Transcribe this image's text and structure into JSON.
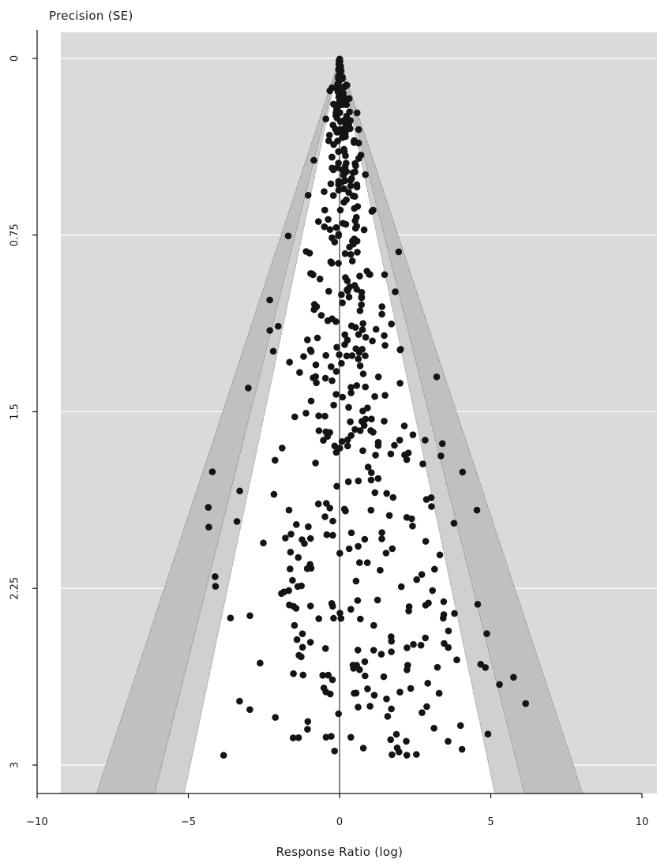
{
  "chart_data": {
    "type": "scatter",
    "title": "",
    "xlabel": "Response Ratio (log)",
    "ylabel": "Precision (SE)",
    "xlim": [
      -10,
      10
    ],
    "ylim": [
      3.12,
      -0.12
    ],
    "x_ticks": [
      {
        "value": -10,
        "label": "−10"
      },
      {
        "value": -5,
        "label": "−5"
      },
      {
        "value": 0,
        "label": "0"
      },
      {
        "value": 5,
        "label": "5"
      },
      {
        "value": 10,
        "label": "10"
      }
    ],
    "y_ticks": [
      {
        "value": 0,
        "label": "0"
      },
      {
        "value": 0.75,
        "label": "0.75"
      },
      {
        "value": 1.5,
        "label": "1.5"
      },
      {
        "value": 2.25,
        "label": "2.25"
      },
      {
        "value": 3,
        "label": "3"
      }
    ],
    "funnel": {
      "center": 0,
      "max_se": 3.12,
      "contour_z": [
        1.645,
        1.96,
        2.576
      ],
      "fill_colors": [
        "#ffffff",
        "#d0d0d0",
        "#bfc1c1"
      ],
      "background_color": "#dadada"
    },
    "point_color": "#141414",
    "reference_line_x": 0,
    "grid": true,
    "points_seed": 20240601,
    "points_count": 520
  }
}
